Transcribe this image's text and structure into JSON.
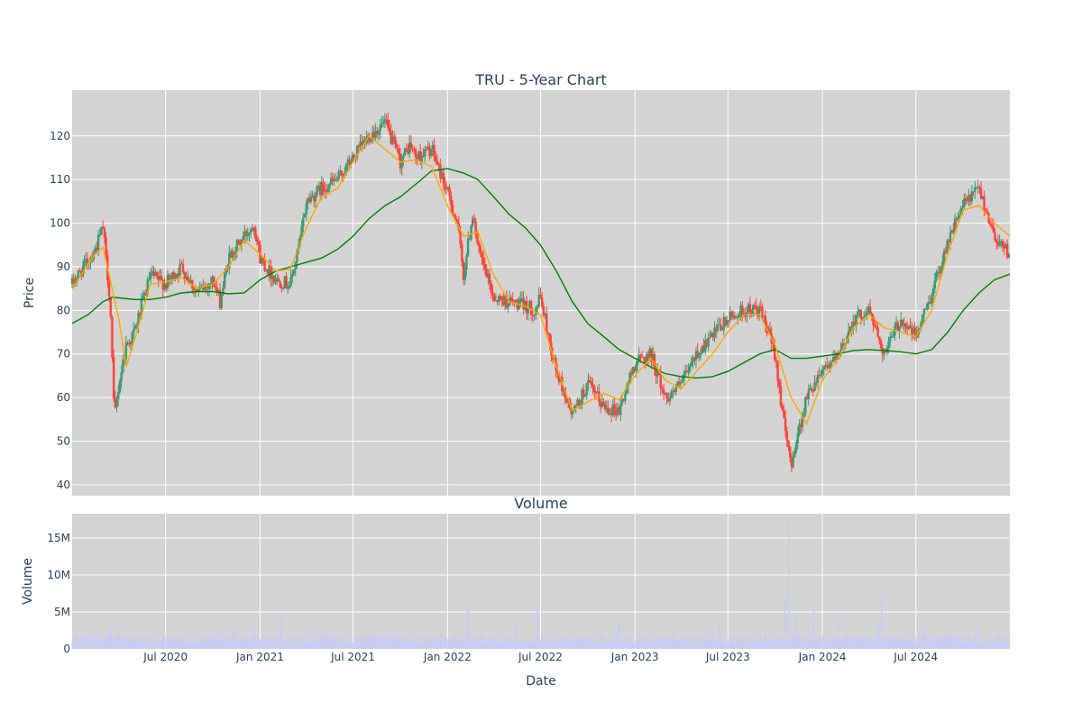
{
  "chart_data": [
    {
      "type": "candlestick",
      "title": "TRU - 5-Year Chart",
      "ylabel": "Price",
      "ylim": [
        37.5,
        130.5
      ],
      "yticks": [
        40,
        50,
        60,
        70,
        80,
        90,
        100,
        110,
        120
      ],
      "xlim": [
        "2020-01-01",
        "2024-12-31"
      ],
      "grid": true,
      "up_color": "#3d9970",
      "down_color": "#ff4136",
      "short_ma": {
        "color": "#ffa500",
        "points": [
          [
            "2020-01-01",
            85
          ],
          [
            "2020-02-15",
            93
          ],
          [
            "2020-03-01",
            94.5
          ],
          [
            "2020-04-01",
            78
          ],
          [
            "2020-04-15",
            67
          ],
          [
            "2020-05-01",
            73
          ],
          [
            "2020-06-01",
            86
          ],
          [
            "2020-07-01",
            86.5
          ],
          [
            "2020-08-01",
            87.5
          ],
          [
            "2020-09-01",
            85
          ],
          [
            "2020-10-01",
            86
          ],
          [
            "2020-11-01",
            90
          ],
          [
            "2020-12-01",
            96
          ],
          [
            "2021-01-01",
            93
          ],
          [
            "2021-02-01",
            89
          ],
          [
            "2021-03-01",
            89.5
          ],
          [
            "2021-04-01",
            99
          ],
          [
            "2021-05-01",
            106
          ],
          [
            "2021-06-01",
            108
          ],
          [
            "2021-07-01",
            114
          ],
          [
            "2021-08-01",
            120
          ],
          [
            "2021-09-01",
            117
          ],
          [
            "2021-10-01",
            114
          ],
          [
            "2021-11-01",
            114.5
          ],
          [
            "2021-12-01",
            113
          ],
          [
            "2022-01-01",
            104
          ],
          [
            "2022-02-01",
            97
          ],
          [
            "2022-03-01",
            98
          ],
          [
            "2022-04-01",
            88
          ],
          [
            "2022-05-01",
            82
          ],
          [
            "2022-06-01",
            81
          ],
          [
            "2022-07-01",
            79
          ],
          [
            "2022-08-01",
            67
          ],
          [
            "2022-09-01",
            57
          ],
          [
            "2022-10-01",
            59
          ],
          [
            "2022-11-01",
            61
          ],
          [
            "2022-12-01",
            59.5
          ],
          [
            "2023-01-01",
            65
          ],
          [
            "2023-02-01",
            69
          ],
          [
            "2023-03-01",
            64
          ],
          [
            "2023-04-01",
            62
          ],
          [
            "2023-05-01",
            66
          ],
          [
            "2023-06-01",
            70
          ],
          [
            "2023-07-01",
            75
          ],
          [
            "2023-08-01",
            79
          ],
          [
            "2023-09-01",
            79
          ],
          [
            "2023-10-01",
            72
          ],
          [
            "2023-11-01",
            60
          ],
          [
            "2023-12-01",
            54
          ],
          [
            "2024-01-01",
            64
          ],
          [
            "2024-02-01",
            69
          ],
          [
            "2024-03-01",
            76
          ],
          [
            "2024-04-01",
            79
          ],
          [
            "2024-05-01",
            76
          ],
          [
            "2024-06-01",
            75
          ],
          [
            "2024-07-01",
            74
          ],
          [
            "2024-08-01",
            80
          ],
          [
            "2024-09-01",
            93
          ],
          [
            "2024-10-01",
            103
          ],
          [
            "2024-11-01",
            104
          ],
          [
            "2024-12-01",
            100
          ],
          [
            "2024-12-31",
            97
          ]
        ]
      },
      "long_ma": {
        "color": "#008000",
        "points": [
          [
            "2020-01-01",
            77
          ],
          [
            "2020-02-01",
            79
          ],
          [
            "2020-03-01",
            82
          ],
          [
            "2020-03-20",
            83
          ],
          [
            "2020-05-01",
            82.5
          ],
          [
            "2020-06-01",
            82.5
          ],
          [
            "2020-07-01",
            83
          ],
          [
            "2020-08-01",
            84
          ],
          [
            "2020-09-01",
            84.3
          ],
          [
            "2020-10-01",
            84.3
          ],
          [
            "2020-11-01",
            83.8
          ],
          [
            "2020-12-01",
            84
          ],
          [
            "2021-01-01",
            87
          ],
          [
            "2021-02-01",
            89
          ],
          [
            "2021-03-01",
            90
          ],
          [
            "2021-04-01",
            91
          ],
          [
            "2021-05-01",
            92
          ],
          [
            "2021-06-01",
            94
          ],
          [
            "2021-07-01",
            97
          ],
          [
            "2021-08-01",
            101
          ],
          [
            "2021-09-01",
            104
          ],
          [
            "2021-10-01",
            106
          ],
          [
            "2021-11-01",
            109
          ],
          [
            "2021-12-01",
            112
          ],
          [
            "2022-01-01",
            112.5
          ],
          [
            "2022-02-01",
            111.5
          ],
          [
            "2022-03-01",
            110
          ],
          [
            "2022-04-01",
            106
          ],
          [
            "2022-05-01",
            102
          ],
          [
            "2022-06-01",
            99
          ],
          [
            "2022-07-01",
            95
          ],
          [
            "2022-08-01",
            89
          ],
          [
            "2022-09-01",
            82
          ],
          [
            "2022-10-01",
            77
          ],
          [
            "2022-11-01",
            74
          ],
          [
            "2022-12-01",
            71
          ],
          [
            "2023-01-01",
            69
          ],
          [
            "2023-02-01",
            67
          ],
          [
            "2023-03-01",
            65.5
          ],
          [
            "2023-04-01",
            64.8
          ],
          [
            "2023-05-01",
            64.5
          ],
          [
            "2023-06-01",
            64.8
          ],
          [
            "2023-07-01",
            66
          ],
          [
            "2023-08-01",
            68
          ],
          [
            "2023-09-01",
            70
          ],
          [
            "2023-10-01",
            71
          ],
          [
            "2023-11-01",
            69
          ],
          [
            "2023-12-01",
            69
          ],
          [
            "2024-01-01",
            69.5
          ],
          [
            "2024-02-01",
            70
          ],
          [
            "2024-03-01",
            70.8
          ],
          [
            "2024-04-01",
            71
          ],
          [
            "2024-05-01",
            70.8
          ],
          [
            "2024-06-01",
            70.5
          ],
          [
            "2024-07-01",
            70
          ],
          [
            "2024-08-01",
            71
          ],
          [
            "2024-09-01",
            75
          ],
          [
            "2024-10-01",
            80
          ],
          [
            "2024-11-01",
            84
          ],
          [
            "2024-12-01",
            87
          ],
          [
            "2024-12-31",
            88.3
          ]
        ]
      },
      "price_path": [
        [
          "2020-01-01",
          86
        ],
        [
          "2020-02-15",
          94
        ],
        [
          "2020-03-01",
          99
        ],
        [
          "2020-03-15",
          82
        ],
        [
          "2020-03-23",
          55
        ],
        [
          "2020-04-01",
          63
        ],
        [
          "2020-04-15",
          72
        ],
        [
          "2020-05-01",
          75
        ],
        [
          "2020-06-01",
          88
        ],
        [
          "2020-07-01",
          86
        ],
        [
          "2020-08-01",
          90
        ],
        [
          "2020-09-01",
          84
        ],
        [
          "2020-10-01",
          87
        ],
        [
          "2020-10-15",
          82
        ],
        [
          "2020-11-01",
          92
        ],
        [
          "2020-12-01",
          97
        ],
        [
          "2020-12-20",
          100
        ],
        [
          "2021-01-01",
          92
        ],
        [
          "2021-02-01",
          87
        ],
        [
          "2021-03-01",
          86
        ],
        [
          "2021-03-20",
          96
        ],
        [
          "2021-04-01",
          105
        ],
        [
          "2021-05-01",
          108
        ],
        [
          "2021-06-01",
          110
        ],
        [
          "2021-07-01",
          115
        ],
        [
          "2021-08-01",
          120
        ],
        [
          "2021-09-01",
          123
        ],
        [
          "2021-10-01",
          114
        ],
        [
          "2021-10-20",
          118
        ],
        [
          "2021-11-01",
          115
        ],
        [
          "2021-12-01",
          117
        ],
        [
          "2022-01-01",
          107
        ],
        [
          "2022-01-20",
          100
        ],
        [
          "2022-02-01",
          88
        ],
        [
          "2022-02-20",
          103
        ],
        [
          "2022-03-01",
          94
        ],
        [
          "2022-04-01",
          83
        ],
        [
          "2022-05-01",
          82
        ],
        [
          "2022-06-01",
          81
        ],
        [
          "2022-06-20",
          80
        ],
        [
          "2022-07-01",
          83
        ],
        [
          "2022-07-20",
          72
        ],
        [
          "2022-08-01",
          66
        ],
        [
          "2022-09-01",
          56
        ],
        [
          "2022-10-01",
          63
        ],
        [
          "2022-11-01",
          58
        ],
        [
          "2022-12-01",
          57
        ],
        [
          "2023-01-01",
          68
        ],
        [
          "2023-02-01",
          70
        ],
        [
          "2023-03-01",
          60
        ],
        [
          "2023-04-01",
          63
        ],
        [
          "2023-05-01",
          70
        ],
        [
          "2023-06-01",
          74
        ],
        [
          "2023-07-01",
          78
        ],
        [
          "2023-08-01",
          80
        ],
        [
          "2023-09-01",
          80
        ],
        [
          "2023-10-01",
          70
        ],
        [
          "2023-10-20",
          52
        ],
        [
          "2023-11-01",
          45
        ],
        [
          "2023-11-15",
          52
        ],
        [
          "2023-12-01",
          60
        ],
        [
          "2024-01-01",
          67
        ],
        [
          "2024-02-01",
          69
        ],
        [
          "2024-03-01",
          78
        ],
        [
          "2024-04-01",
          80
        ],
        [
          "2024-05-01",
          70
        ],
        [
          "2024-06-01",
          78
        ],
        [
          "2024-07-01",
          74
        ],
        [
          "2024-08-01",
          84
        ],
        [
          "2024-09-01",
          96
        ],
        [
          "2024-10-01",
          104
        ],
        [
          "2024-11-01",
          108
        ],
        [
          "2024-12-01",
          97
        ],
        [
          "2024-12-31",
          93
        ]
      ]
    },
    {
      "type": "bar",
      "title": "Volume",
      "ylabel": "Volume",
      "xlabel": "Date",
      "ylim": [
        0,
        18300000
      ],
      "yticks": [
        {
          "value": 0,
          "label": "0"
        },
        {
          "value": 5000000,
          "label": "5M"
        },
        {
          "value": 10000000,
          "label": "10M"
        },
        {
          "value": 15000000,
          "label": "15M"
        }
      ],
      "bar_color": "#c9c9f5",
      "xticks": [
        {
          "date": "2020-07-01",
          "label": "Jul 2020"
        },
        {
          "date": "2021-01-01",
          "label": "Jan 2021"
        },
        {
          "date": "2021-07-01",
          "label": "Jul 2021"
        },
        {
          "date": "2022-01-01",
          "label": "Jan 2022"
        },
        {
          "date": "2022-07-01",
          "label": "Jul 2022"
        },
        {
          "date": "2023-01-01",
          "label": "Jan 2023"
        },
        {
          "date": "2023-07-01",
          "label": "Jul 2023"
        },
        {
          "date": "2024-01-01",
          "label": "Jan 2024"
        },
        {
          "date": "2024-07-01",
          "label": "Jul 2024"
        }
      ],
      "volume_spikes": [
        [
          "2020-03-15",
          2900000
        ],
        [
          "2020-04-01",
          3000000
        ],
        [
          "2020-11-15",
          2300000
        ],
        [
          "2021-02-10",
          4500000
        ],
        [
          "2021-04-15",
          3700000
        ],
        [
          "2022-02-10",
          5200000
        ],
        [
          "2022-05-15",
          3800000
        ],
        [
          "2022-06-25",
          5600000
        ],
        [
          "2022-09-01",
          3700000
        ],
        [
          "2022-12-01",
          3900000
        ],
        [
          "2023-06-15",
          3800000
        ],
        [
          "2023-10-20",
          6500000
        ],
        [
          "2023-10-28",
          17500000
        ],
        [
          "2023-11-10",
          4200000
        ],
        [
          "2023-12-15",
          5500000
        ],
        [
          "2024-02-01",
          4000000
        ],
        [
          "2024-04-20",
          4000000
        ],
        [
          "2024-04-26",
          6800000
        ],
        [
          "2024-07-15",
          3200000
        ],
        [
          "2024-11-01",
          2800000
        ]
      ]
    }
  ]
}
